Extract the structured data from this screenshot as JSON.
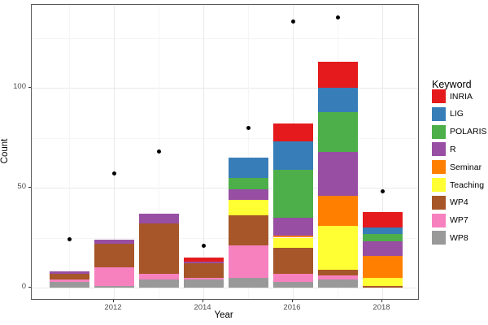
{
  "figure": {
    "background": "#ffffff",
    "panel_background": "#ffffff",
    "panel_border_color": "#595959",
    "grid_major_color": "#e9e9e9",
    "grid_minor_color": "#f5f5f5",
    "point_color": "#000000"
  },
  "axes": {
    "x_title": "Year",
    "y_title": "Count",
    "x_tick_labels": [
      "2012",
      "2014",
      "2016",
      "2018"
    ],
    "y_tick_labels": [
      "0",
      "50",
      "100"
    ]
  },
  "legend": {
    "title": "Keyword",
    "position": "right",
    "items": [
      {
        "label": "INRIA",
        "color": "#e41a1c"
      },
      {
        "label": "LIG",
        "color": "#377eb8"
      },
      {
        "label": "POLARIS",
        "color": "#4daf4a"
      },
      {
        "label": "R",
        "color": "#984ea3"
      },
      {
        "label": "Seminar",
        "color": "#ff7f00"
      },
      {
        "label": "Teaching",
        "color": "#ffff33"
      },
      {
        "label": "WP4",
        "color": "#a65628"
      },
      {
        "label": "WP7",
        "color": "#f781bf"
      },
      {
        "label": "WP8",
        "color": "#999999"
      }
    ]
  },
  "chart_data": {
    "type": "bar",
    "subtype": "stacked-with-point-overlay",
    "title": "",
    "xlabel": "Year",
    "ylabel": "Count",
    "x": [
      2011,
      2012,
      2013,
      2014,
      2015,
      2016,
      2017,
      2018
    ],
    "x_major_ticks": [
      2012,
      2014,
      2016,
      2018
    ],
    "x_minor_ticks": [
      2011,
      2013,
      2015,
      2017
    ],
    "y_major_ticks": [
      0,
      50,
      100
    ],
    "y_minor_ticks": [
      25,
      75,
      125
    ],
    "ylim": [
      0,
      140
    ],
    "grid": true,
    "legend_position": "right",
    "stack_order_note": "bars stacked bottom-to-top in reverse legend order (WP8 at bottom, INRIA on top)",
    "series": [
      {
        "name": "INRIA",
        "color": "#e41a1c",
        "values": [
          0,
          0,
          0,
          2,
          0,
          9,
          13,
          8
        ]
      },
      {
        "name": "LIG",
        "color": "#377eb8",
        "values": [
          0,
          0,
          0,
          0,
          10,
          14,
          12,
          3
        ]
      },
      {
        "name": "POLARIS",
        "color": "#4daf4a",
        "values": [
          0,
          0,
          0,
          0,
          6,
          24,
          20,
          4
        ]
      },
      {
        "name": "R",
        "color": "#984ea3",
        "values": [
          1,
          2,
          5,
          1,
          5,
          9,
          22,
          7
        ]
      },
      {
        "name": "Seminar",
        "color": "#ff7f00",
        "values": [
          0,
          0,
          0,
          0,
          0,
          1,
          15,
          11
        ]
      },
      {
        "name": "Teaching",
        "color": "#ffff33",
        "values": [
          0,
          0,
          0,
          0,
          8,
          5,
          22,
          4
        ]
      },
      {
        "name": "WP4",
        "color": "#a65628",
        "values": [
          3,
          12,
          25,
          7,
          15,
          13,
          3,
          1
        ]
      },
      {
        "name": "WP7",
        "color": "#f781bf",
        "values": [
          1,
          9,
          3,
          1,
          16,
          4,
          2,
          0
        ]
      },
      {
        "name": "WP8",
        "color": "#999999",
        "values": [
          3,
          1,
          4,
          4,
          5,
          3,
          4,
          0
        ]
      }
    ],
    "bar_totals": [
      8,
      24,
      37,
      15,
      65,
      82,
      113,
      38
    ],
    "points": {
      "name": "yearly-count-dots",
      "color": "#000000",
      "values": [
        24,
        57,
        68,
        21,
        80,
        133,
        135,
        48
      ]
    }
  }
}
